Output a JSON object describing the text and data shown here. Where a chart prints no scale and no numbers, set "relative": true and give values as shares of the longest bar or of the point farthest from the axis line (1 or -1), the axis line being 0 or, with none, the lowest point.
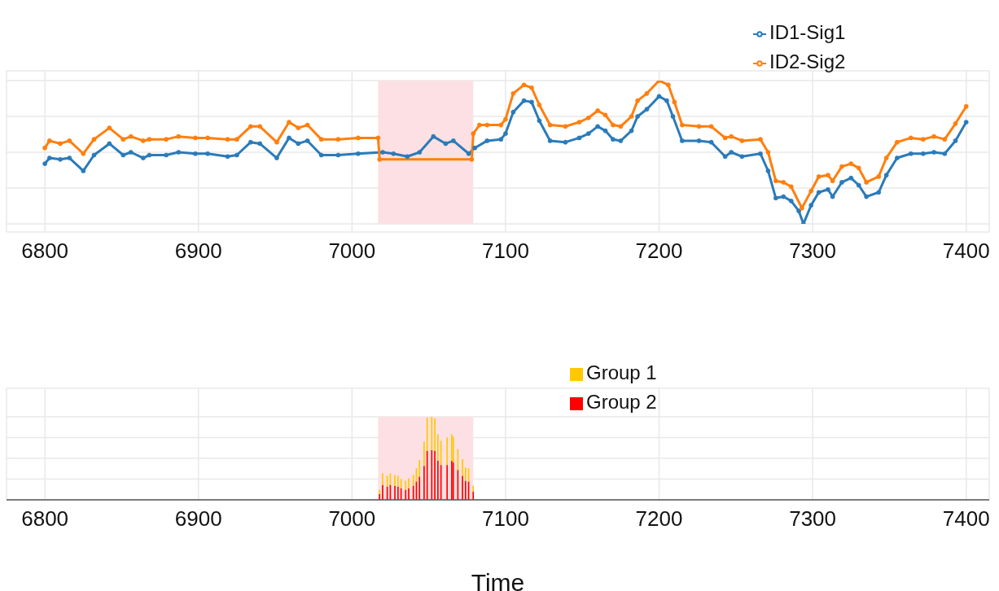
{
  "chart_data": [
    {
      "type": "line",
      "relative": true,
      "xlim": [
        6775,
        7415
      ],
      "xticks": [
        6800,
        6900,
        7000,
        7100,
        7200,
        7300,
        7400
      ],
      "grid": true,
      "legend": "top right",
      "marker": "circle",
      "bands": [
        {
          "axis": "x",
          "from": 7017,
          "to": 7079,
          "color": "#fde0e3"
        }
      ],
      "series": [
        {
          "name": "ID1-Sig1",
          "color": "#2b7bb9",
          "x": [
            6800,
            6803,
            6810,
            6816,
            6825,
            6832,
            6842,
            6851,
            6856,
            6864,
            6868,
            6879,
            6887,
            6898,
            6906,
            6919,
            6925,
            6934,
            6940,
            6951,
            6959,
            6965,
            6971,
            6980,
            6991,
            7004,
            7020,
            7027,
            7036,
            7044,
            7053,
            7061,
            7066,
            7076,
            7080,
            7088,
            7097,
            7100,
            7105,
            7112,
            7117,
            7122,
            7129,
            7139,
            7148,
            7154,
            7160,
            7165,
            7170,
            7175,
            7182,
            7186,
            7192,
            7200,
            7205,
            7209,
            7215,
            7226,
            7234,
            7243,
            7247,
            7254,
            7266,
            7271,
            7276,
            7281,
            7286,
            7291,
            7294,
            7299,
            7304,
            7310,
            7313,
            7319,
            7325,
            7330,
            7335,
            7343,
            7348,
            7355,
            7364,
            7372,
            7379,
            7386,
            7393,
            7400
          ],
          "values": [
            0.42,
            0.46,
            0.45,
            0.46,
            0.37,
            0.48,
            0.56,
            0.48,
            0.5,
            0.46,
            0.48,
            0.48,
            0.5,
            0.49,
            0.49,
            0.47,
            0.48,
            0.57,
            0.56,
            0.46,
            0.6,
            0.56,
            0.58,
            0.48,
            0.48,
            0.49,
            0.5,
            0.49,
            0.47,
            0.5,
            0.61,
            0.56,
            0.58,
            0.49,
            0.53,
            0.58,
            0.59,
            0.63,
            0.78,
            0.86,
            0.85,
            0.72,
            0.58,
            0.57,
            0.6,
            0.63,
            0.68,
            0.65,
            0.59,
            0.58,
            0.65,
            0.75,
            0.8,
            0.89,
            0.86,
            0.75,
            0.58,
            0.58,
            0.57,
            0.47,
            0.5,
            0.47,
            0.49,
            0.37,
            0.18,
            0.19,
            0.16,
            0.09,
            0,
            0.13,
            0.22,
            0.24,
            0.19,
            0.29,
            0.32,
            0.27,
            0.19,
            0.22,
            0.34,
            0.46,
            0.49,
            0.49,
            0.5,
            0.49,
            0.58,
            0.71
          ]
        },
        {
          "name": "ID2-Sig2",
          "color": "#ff7f0e",
          "x": [
            6800,
            6803,
            6810,
            6816,
            6825,
            6832,
            6842,
            6851,
            6856,
            6864,
            6868,
            6879,
            6887,
            6898,
            6906,
            6919,
            6925,
            6934,
            6940,
            6951,
            6959,
            6965,
            6971,
            6980,
            6991,
            7004,
            7017,
            7018,
            7078,
            7079,
            7083,
            7088,
            7097,
            7100,
            7105,
            7112,
            7117,
            7122,
            7129,
            7139,
            7148,
            7154,
            7160,
            7165,
            7170,
            7175,
            7182,
            7186,
            7192,
            7200,
            7206,
            7210,
            7215,
            7226,
            7234,
            7243,
            7247,
            7254,
            7266,
            7271,
            7276,
            7281,
            7286,
            7293,
            7299,
            7304,
            7310,
            7313,
            7319,
            7325,
            7330,
            7335,
            7343,
            7348,
            7355,
            7364,
            7372,
            7379,
            7386,
            7393,
            7400
          ],
          "values": [
            0.53,
            0.58,
            0.56,
            0.58,
            0.49,
            0.59,
            0.67,
            0.59,
            0.61,
            0.58,
            0.59,
            0.59,
            0.61,
            0.6,
            0.6,
            0.59,
            0.59,
            0.68,
            0.68,
            0.57,
            0.71,
            0.67,
            0.69,
            0.59,
            0.59,
            0.6,
            0.6,
            0.45,
            0.45,
            0.63,
            0.69,
            0.69,
            0.69,
            0.73,
            0.91,
            0.97,
            0.95,
            0.83,
            0.69,
            0.68,
            0.71,
            0.74,
            0.79,
            0.76,
            0.69,
            0.68,
            0.75,
            0.86,
            0.91,
            1,
            0.97,
            0.85,
            0.69,
            0.68,
            0.68,
            0.6,
            0.61,
            0.58,
            0.59,
            0.5,
            0.3,
            0.29,
            0.26,
            0.11,
            0.23,
            0.33,
            0.34,
            0.3,
            0.4,
            0.42,
            0.39,
            0.29,
            0.33,
            0.46,
            0.57,
            0.6,
            0.59,
            0.61,
            0.59,
            0.7,
            0.82
          ]
        }
      ]
    },
    {
      "type": "bar",
      "stacked": true,
      "relative": true,
      "xlim": [
        6775,
        7415
      ],
      "xticks": [
        6800,
        6900,
        7000,
        7100,
        7200,
        7300,
        7400
      ],
      "xlabel": "Time",
      "grid": true,
      "legend": "top right",
      "bands": [
        {
          "axis": "x",
          "from": 7017,
          "to": 7079,
          "color": "#fde0e3"
        }
      ],
      "x": [
        7018,
        7020,
        7023,
        7025,
        7028,
        7030,
        7032,
        7035,
        7037,
        7040,
        7042,
        7044,
        7047,
        7049,
        7052,
        7054,
        7056,
        7058,
        7062,
        7065,
        7066,
        7069,
        7072,
        7074,
        7076,
        7079
      ],
      "series": [
        {
          "name": "Group 2",
          "color": "#ff0000",
          "values": [
            0.07,
            0.18,
            0.16,
            0.18,
            0.17,
            0.16,
            0.14,
            0.12,
            0.14,
            0.17,
            0.22,
            0.28,
            0.41,
            0.59,
            0.6,
            0.59,
            0.47,
            0.42,
            0.42,
            0.47,
            0.45,
            0.36,
            0.29,
            0.23,
            0.22,
            0.1
          ]
        },
        {
          "name": "Group 1",
          "color": "#ffc800",
          "values": [
            0.05,
            0.14,
            0.13,
            0.14,
            0.13,
            0.13,
            0.11,
            0.11,
            0.12,
            0.13,
            0.16,
            0.2,
            0.29,
            0.4,
            0.4,
            0.39,
            0.32,
            0.29,
            0.33,
            0.32,
            0.31,
            0.25,
            0.2,
            0.16,
            0.16,
            0.07
          ]
        }
      ]
    }
  ]
}
